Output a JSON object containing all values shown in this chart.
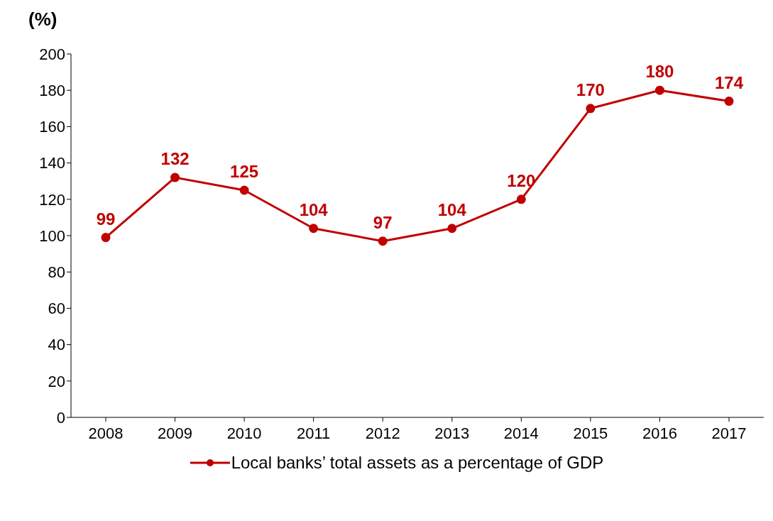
{
  "chart_data": {
    "type": "line",
    "ylabel": "(%)",
    "categories": [
      "2008",
      "2009",
      "2010",
      "2011",
      "2012",
      "2013",
      "2014",
      "2015",
      "2016",
      "2017"
    ],
    "series": [
      {
        "name": "Local banks’ total assets as a percentage of GDP",
        "color": "#c00000",
        "values": [
          99,
          132,
          125,
          104,
          97,
          104,
          120,
          170,
          180,
          174
        ]
      }
    ],
    "ylim": [
      0,
      200
    ],
    "yticks": [
      0,
      20,
      40,
      60,
      80,
      100,
      120,
      140,
      160,
      180,
      200
    ],
    "data_labels": true,
    "legend": "bottom",
    "marker": "circle",
    "grid": false
  }
}
